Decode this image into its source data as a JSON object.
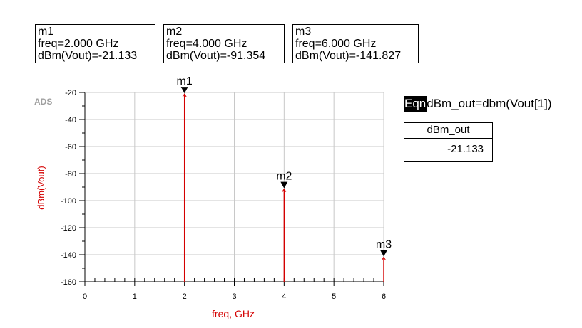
{
  "markers": [
    {
      "name": "m1",
      "freq_text": "freq=2.000 GHz",
      "value_text": "dBm(Vout)=-21.133"
    },
    {
      "name": "m2",
      "freq_text": "freq=4.000 GHz",
      "value_text": "dBm(Vout)=-91.354"
    },
    {
      "name": "m3",
      "freq_text": "freq=6.000 GHz",
      "value_text": "dBm(Vout)=-141.827"
    }
  ],
  "equation": {
    "tag": "Eqn",
    "text": "dBm_out=dbm(Vout[1])"
  },
  "eq_table": {
    "header": "dBm_out",
    "value": "-21.133"
  },
  "chart_data": {
    "type": "line",
    "plot_style": "spectrum-stems",
    "watermark": "ADS",
    "xlabel": "freq, GHz",
    "ylabel": "dBm(Vout)",
    "xlim": [
      0,
      6
    ],
    "ylim": [
      -160,
      -20
    ],
    "xticks": [
      0,
      1,
      2,
      3,
      4,
      5,
      6
    ],
    "yticks": [
      -20,
      -40,
      -60,
      -80,
      -100,
      -120,
      -140,
      -160
    ],
    "grid": true,
    "series": [
      {
        "x": [
          2,
          4,
          6
        ],
        "values": [
          -21.133,
          -91.354,
          -141.827
        ],
        "color": "#d40000"
      }
    ],
    "marker_labels": [
      "m1",
      "m2",
      "m3"
    ]
  }
}
